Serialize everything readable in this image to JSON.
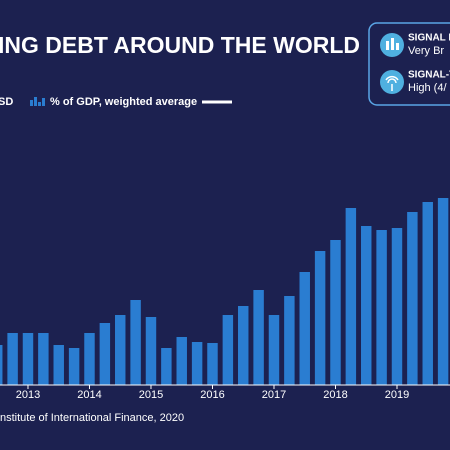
{
  "chart_data": {
    "type": "bar_line",
    "title": "ING DEBT AROUND THE WORLD",
    "legend_left": "SD",
    "source": "nstitute of International Finance, 2020",
    "xlim": [
      2012.545,
      2019.862
    ],
    "xticks": [
      2013,
      2014,
      2015,
      2016,
      2017,
      2018,
      2019
    ],
    "ylim": [
      0,
      300
    ],
    "x": [
      2012.5,
      2012.75,
      2013,
      2013.25,
      2013.5,
      2013.75,
      2014,
      2014.25,
      2014.5,
      2014.75,
      2015,
      2015.25,
      2015.5,
      2015.75,
      2016,
      2016.25,
      2016.5,
      2016.75,
      2017,
      2017.25,
      2017.5,
      2017.75,
      2018,
      2018.25,
      2018.5,
      2018.75,
      2019,
      2019.25,
      2019.5,
      2019.75
    ],
    "series": [
      {
        "name": "% of GDP, weighted average",
        "kind": "line",
        "color": "#ffffff",
        "values": [
          57,
          70,
          80,
          88,
          75,
          67,
          85,
          95,
          102,
          120,
          150,
          170,
          147,
          157,
          175,
          203,
          218,
          223,
          210,
          217,
          203,
          193,
          180,
          187,
          192,
          192,
          192,
          200,
          203,
          217
        ]
      },
      {
        "name": "",
        "kind": "bar",
        "color": "#2a7dd1",
        "values": [
          40,
          52,
          52,
          52,
          40,
          37,
          52,
          62,
          70,
          85,
          68,
          37,
          48,
          43,
          42,
          70,
          79,
          95,
          70,
          89,
          113,
          134,
          145,
          177,
          159,
          155,
          157,
          173,
          183,
          187
        ]
      }
    ]
  },
  "panel": {
    "items": [
      {
        "title": "SIGNAL I",
        "text": "Very Br"
      },
      {
        "title": "SIGNAL-T",
        "text": "High (4/"
      }
    ]
  }
}
